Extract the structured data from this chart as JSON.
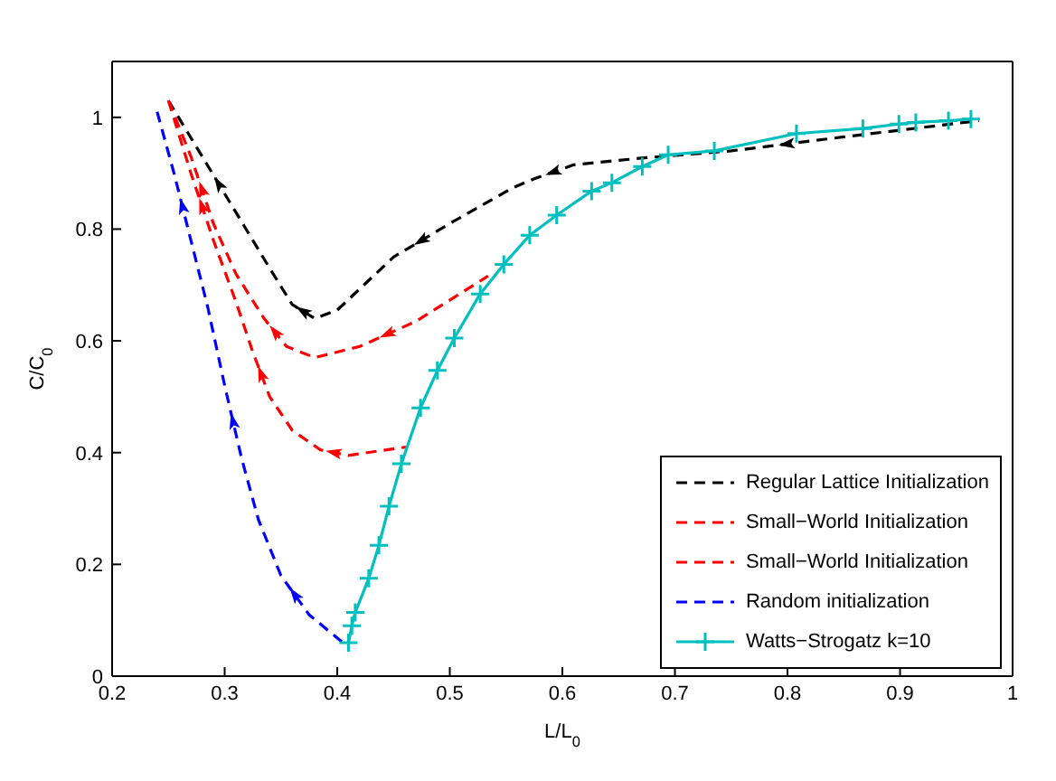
{
  "chart_data": {
    "type": "line",
    "xlabel": "L/L$_{0}$",
    "ylabel": "C/C$_{0}$",
    "xlim": [
      0.2,
      1
    ],
    "ylim": [
      0,
      1.1
    ],
    "xticks": [
      0.2,
      0.3,
      0.4,
      0.5,
      0.6,
      0.7,
      0.8,
      0.9,
      1
    ],
    "yticks": [
      0,
      0.2,
      0.4,
      0.6,
      0.8,
      1
    ],
    "grid": false,
    "legend": "bottom right",
    "series": [
      {
        "name": "Regular Lattice Initialization",
        "color": "#000000",
        "line_style": "dashed",
        "marker": "none",
        "x": [
          0.25,
          0.28,
          0.31,
          0.34,
          0.36,
          0.38,
          0.4,
          0.45,
          0.5,
          0.556,
          0.575,
          0.61,
          0.67,
          0.75,
          0.85,
          0.97
        ],
        "values": [
          1.03,
          0.93,
          0.83,
          0.73,
          0.665,
          0.64,
          0.655,
          0.75,
          0.81,
          0.874,
          0.89,
          0.915,
          0.927,
          0.94,
          0.965,
          0.994
        ]
      },
      {
        "name": "Small−World Initialization",
        "color": "#ff0000",
        "line_style": "dashed",
        "marker": "none",
        "x": [
          0.25,
          0.27,
          0.29,
          0.31,
          0.335,
          0.355,
          0.38,
          0.42,
          0.47,
          0.534
        ],
        "values": [
          1.03,
          0.93,
          0.81,
          0.72,
          0.64,
          0.59,
          0.57,
          0.59,
          0.635,
          0.716
        ]
      },
      {
        "name": "Small−World Initialization",
        "color": "#ff0000",
        "line_style": "dashed",
        "marker": "none",
        "x": [
          0.25,
          0.27,
          0.29,
          0.31,
          0.325,
          0.34,
          0.36,
          0.385,
          0.41,
          0.461
        ],
        "values": [
          1.03,
          0.9,
          0.78,
          0.67,
          0.58,
          0.5,
          0.44,
          0.405,
          0.395,
          0.41
        ]
      },
      {
        "name": "Random initialization",
        "color": "#0000ff",
        "line_style": "dashed",
        "marker": "none",
        "x": [
          0.24,
          0.255,
          0.27,
          0.285,
          0.3,
          0.315,
          0.33,
          0.35,
          0.375,
          0.405
        ],
        "values": [
          1.01,
          0.9,
          0.78,
          0.66,
          0.52,
          0.39,
          0.28,
          0.18,
          0.11,
          0.06
        ]
      },
      {
        "name": "Watts−Strogatz k=10",
        "color": "#00bfbf",
        "line_style": "solid",
        "marker": "cross",
        "x": [
          0.41,
          0.413,
          0.416,
          0.428,
          0.437,
          0.446,
          0.457,
          0.474,
          0.489,
          0.504,
          0.527,
          0.548,
          0.571,
          0.595,
          0.626,
          0.644,
          0.671,
          0.694,
          0.735,
          0.808,
          0.867,
          0.899,
          0.914,
          0.943,
          0.963
        ],
        "values": [
          0.06,
          0.09,
          0.114,
          0.175,
          0.234,
          0.304,
          0.38,
          0.48,
          0.547,
          0.605,
          0.684,
          0.737,
          0.789,
          0.825,
          0.868,
          0.883,
          0.912,
          0.933,
          0.94,
          0.971,
          0.98,
          0.988,
          0.991,
          0.994,
          0.997
        ]
      }
    ]
  }
}
